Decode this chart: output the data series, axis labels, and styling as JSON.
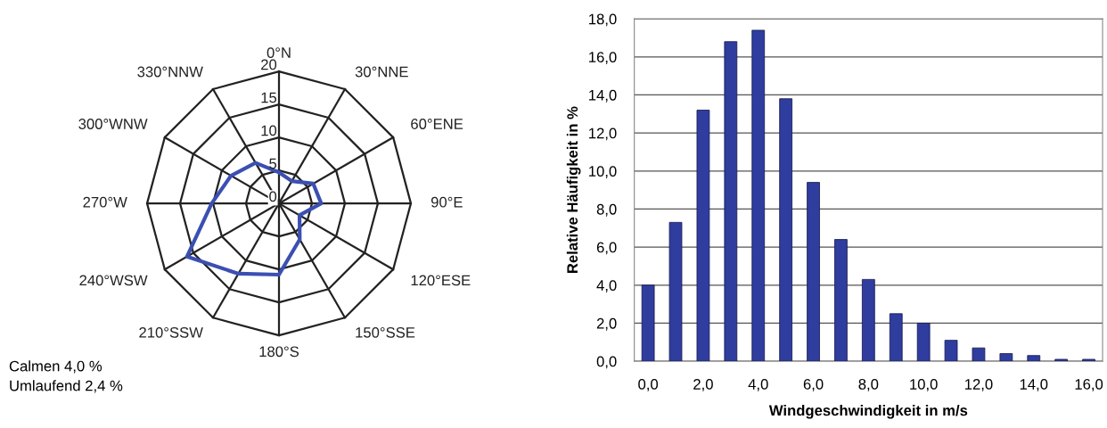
{
  "chart_data": [
    {
      "type": "radar",
      "categories": [
        "0°N",
        "30°NNE",
        "60°ENE",
        "90°E",
        "120°ESE",
        "150°SSE",
        "180°S",
        "210°SSW",
        "240°WSW",
        "270°W",
        "300°WNW",
        "330°NNW"
      ],
      "series": [
        {
          "color": "#3b4fb3",
          "values": [
            4.7,
            3.9,
            6.0,
            6.4,
            3.6,
            6.3,
            10.8,
            12.3,
            16.1,
            10.2,
            8.4,
            7.1
          ]
        }
      ],
      "ylim": [
        0,
        20
      ],
      "yticks": [
        0,
        5,
        10,
        15,
        20
      ],
      "grid": true,
      "annotations": [
        "Calmen 4,0 %",
        "Umlaufend 2,4 %"
      ]
    },
    {
      "type": "bar",
      "x": [
        0,
        1,
        2,
        3,
        4,
        5,
        6,
        7,
        8,
        9,
        10,
        11,
        12,
        13,
        14,
        15,
        16
      ],
      "series": [
        {
          "color": "#2e3d9e",
          "values": [
            4.0,
            7.3,
            13.2,
            16.8,
            17.4,
            13.8,
            9.4,
            6.4,
            4.3,
            2.5,
            2.0,
            1.1,
            0.7,
            0.4,
            0.3,
            0.1,
            0.1
          ]
        }
      ],
      "xlim": [
        -0.5,
        16.5
      ],
      "xticks": [
        {
          "value": 0,
          "label": "0,0"
        },
        {
          "value": 2,
          "label": "2,0"
        },
        {
          "value": 4,
          "label": "4,0"
        },
        {
          "value": 6,
          "label": "6,0"
        },
        {
          "value": 8,
          "label": "8,0"
        },
        {
          "value": 10,
          "label": "10,0"
        },
        {
          "value": 12,
          "label": "12,0"
        },
        {
          "value": 14,
          "label": "14,0"
        },
        {
          "value": 16,
          "label": "16,0"
        }
      ],
      "ylim": [
        0,
        18
      ],
      "yticks": [
        {
          "value": 0,
          "label": "0,0"
        },
        {
          "value": 2,
          "label": "2,0"
        },
        {
          "value": 4,
          "label": "4,0"
        },
        {
          "value": 6,
          "label": "6,0"
        },
        {
          "value": 8,
          "label": "8,0"
        },
        {
          "value": 10,
          "label": "10,0"
        },
        {
          "value": 12,
          "label": "12,0"
        },
        {
          "value": 14,
          "label": "14,0"
        },
        {
          "value": 16,
          "label": "16,0"
        },
        {
          "value": 18,
          "label": "18,0"
        }
      ],
      "xlabel": "Windgeschwindigkeit in m/s",
      "ylabel": "Relative Häufigkeit in %",
      "grid": "y"
    }
  ]
}
